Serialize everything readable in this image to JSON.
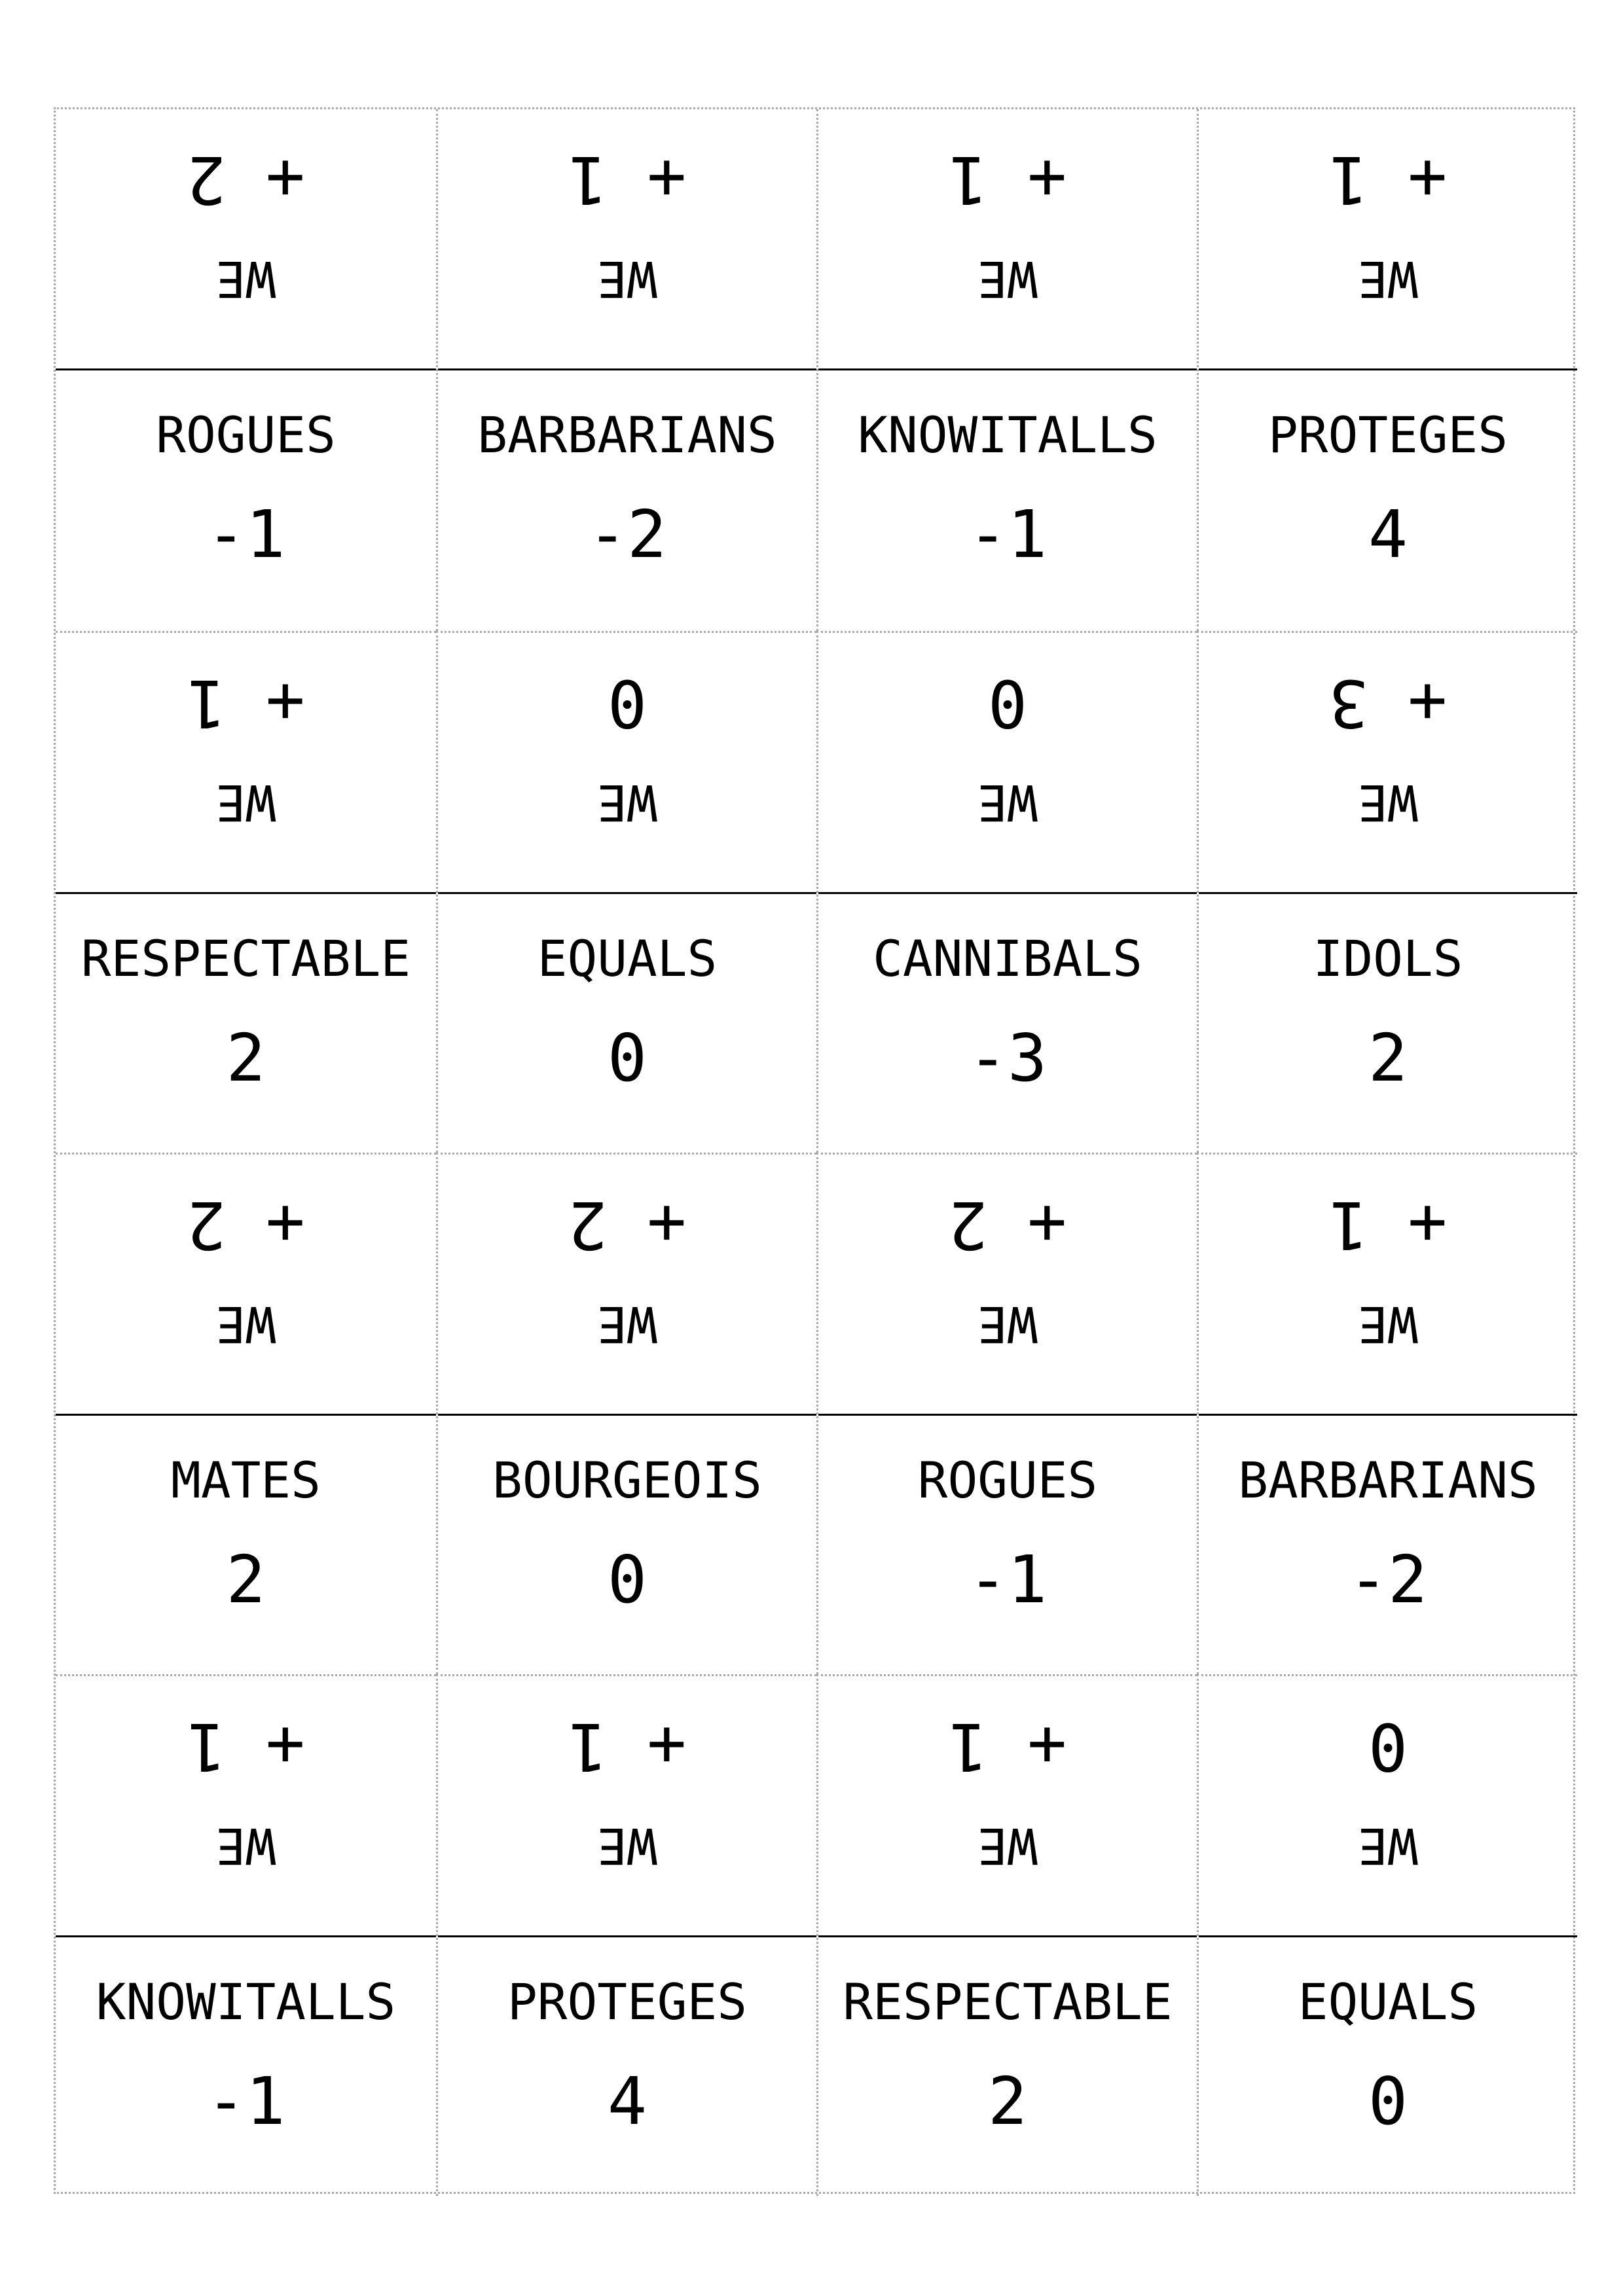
{
  "cards": [
    {
      "label": "ROGUES",
      "value": "-1",
      "we": "WE",
      "bonus": "+ 2"
    },
    {
      "label": "BARBARIANS",
      "value": "-2",
      "we": "WE",
      "bonus": "+ 1"
    },
    {
      "label": "KNOWITALLS",
      "value": "-1",
      "we": "WE",
      "bonus": "+ 1"
    },
    {
      "label": "PROTEGES",
      "value": "4",
      "we": "WE",
      "bonus": "+ 1"
    },
    {
      "label": "RESPECTABLE",
      "value": "2",
      "we": "WE",
      "bonus": "+ 1"
    },
    {
      "label": "EQUALS",
      "value": "0",
      "we": "WE",
      "bonus": "0"
    },
    {
      "label": "CANNIBALS",
      "value": "-3",
      "we": "WE",
      "bonus": "0"
    },
    {
      "label": "IDOLS",
      "value": "2",
      "we": "WE",
      "bonus": "+ 3"
    },
    {
      "label": "MATES",
      "value": "2",
      "we": "WE",
      "bonus": "+ 2"
    },
    {
      "label": "BOURGEOIS",
      "value": "0",
      "we": "WE",
      "bonus": "+ 2"
    },
    {
      "label": "ROGUES",
      "value": "-1",
      "we": "WE",
      "bonus": "+ 2"
    },
    {
      "label": "BARBARIANS",
      "value": "-2",
      "we": "WE",
      "bonus": "+ 1"
    },
    {
      "label": "KNOWITALLS",
      "value": "-1",
      "we": "WE",
      "bonus": "+ 1"
    },
    {
      "label": "PROTEGES",
      "value": "4",
      "we": "WE",
      "bonus": "+ 1"
    },
    {
      "label": "RESPECTABLE",
      "value": "2",
      "we": "WE",
      "bonus": "+ 1"
    },
    {
      "label": "EQUALS",
      "value": "0",
      "we": "WE",
      "bonus": "0"
    }
  ]
}
